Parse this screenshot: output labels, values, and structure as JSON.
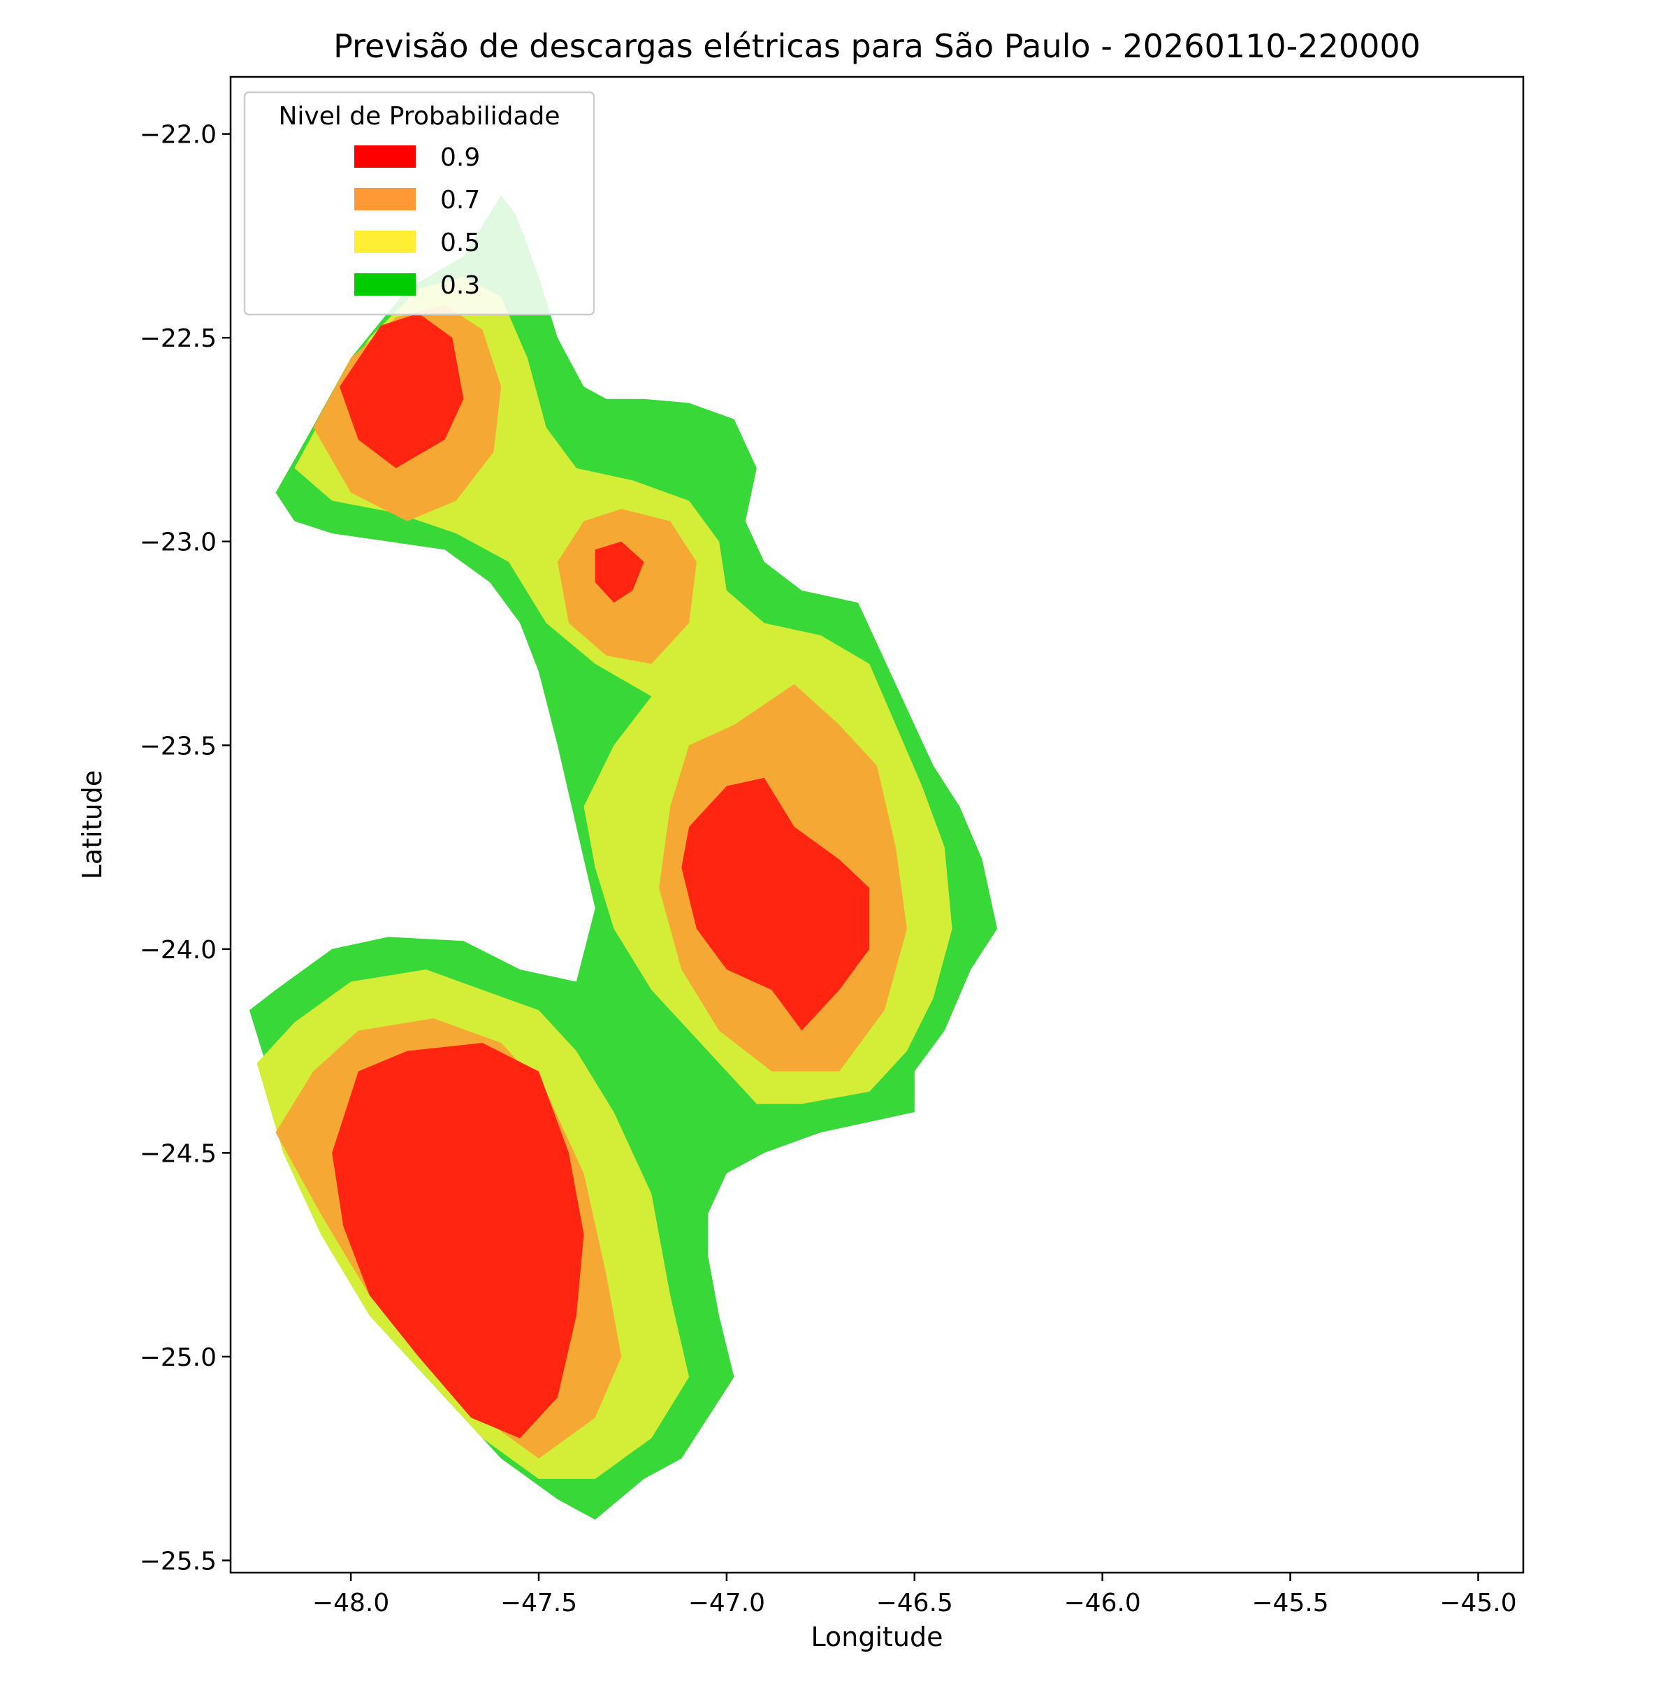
{
  "chart_data": {
    "type": "contour",
    "title": "Previsão de descargas elétricas para São Paulo - 20260110-220000",
    "xlabel": "Longitude",
    "ylabel": "Latitude",
    "xlim": [
      -48.32,
      -44.88
    ],
    "ylim": [
      -25.53,
      -21.86
    ],
    "x_ticks": [
      {
        "value": -48.0,
        "label": "−48.0"
      },
      {
        "value": -47.5,
        "label": "−47.5"
      },
      {
        "value": -47.0,
        "label": "−47.0"
      },
      {
        "value": -46.5,
        "label": "−46.5"
      },
      {
        "value": -46.0,
        "label": "−46.0"
      },
      {
        "value": -45.5,
        "label": "−45.5"
      },
      {
        "value": -45.0,
        "label": "−45.0"
      }
    ],
    "y_ticks": [
      {
        "value": -22.0,
        "label": "−22.0"
      },
      {
        "value": -22.5,
        "label": "−22.5"
      },
      {
        "value": -23.0,
        "label": "−23.0"
      },
      {
        "value": -23.5,
        "label": "−23.5"
      },
      {
        "value": -24.0,
        "label": "−24.0"
      },
      {
        "value": -24.5,
        "label": "−24.5"
      },
      {
        "value": -25.0,
        "label": "−25.0"
      },
      {
        "value": -25.5,
        "label": "−25.5"
      }
    ],
    "grid": false,
    "legend": {
      "title": "Nivel de Probabilidade",
      "placement": "top-left",
      "entries": [
        {
          "label": "0.9",
          "color": "#ff0000"
        },
        {
          "label": "0.7",
          "color": "#ff9933"
        },
        {
          "label": "0.5",
          "color": "#ffee33"
        },
        {
          "label": "0.3",
          "color": "#00cc00"
        }
      ]
    },
    "fill_colors": {
      "level_0.3": "#38d838",
      "level_0.5": "#d4ee38",
      "level_0.7": "#f5a834",
      "level_0.9": "#ff2510"
    },
    "regions": [
      {
        "level": "0.3",
        "polygon": [
          [
            -48.2,
            -22.88
          ],
          [
            -48.12,
            -22.75
          ],
          [
            -48.0,
            -22.55
          ],
          [
            -47.85,
            -22.38
          ],
          [
            -47.7,
            -22.3
          ],
          [
            -47.6,
            -22.15
          ],
          [
            -47.56,
            -22.2
          ],
          [
            -47.5,
            -22.35
          ],
          [
            -47.45,
            -22.5
          ],
          [
            -47.38,
            -22.62
          ],
          [
            -47.32,
            -22.65
          ],
          [
            -47.22,
            -22.65
          ],
          [
            -47.1,
            -22.66
          ],
          [
            -46.98,
            -22.7
          ],
          [
            -46.92,
            -22.82
          ],
          [
            -46.95,
            -22.95
          ],
          [
            -46.9,
            -23.05
          ],
          [
            -46.8,
            -23.12
          ],
          [
            -46.65,
            -23.15
          ],
          [
            -46.6,
            -23.25
          ],
          [
            -46.55,
            -23.35
          ],
          [
            -46.5,
            -23.45
          ],
          [
            -46.45,
            -23.55
          ],
          [
            -46.38,
            -23.65
          ],
          [
            -46.32,
            -23.78
          ],
          [
            -46.28,
            -23.95
          ],
          [
            -46.35,
            -24.05
          ],
          [
            -46.42,
            -24.2
          ],
          [
            -46.5,
            -24.3
          ],
          [
            -46.5,
            -24.4
          ],
          [
            -46.6,
            -24.42
          ],
          [
            -46.75,
            -24.45
          ],
          [
            -46.9,
            -24.5
          ],
          [
            -47.0,
            -24.55
          ],
          [
            -47.05,
            -24.65
          ],
          [
            -47.05,
            -24.75
          ],
          [
            -47.02,
            -24.9
          ],
          [
            -46.98,
            -25.05
          ],
          [
            -47.05,
            -25.15
          ],
          [
            -47.12,
            -25.25
          ],
          [
            -47.22,
            -25.3
          ],
          [
            -47.35,
            -25.4
          ],
          [
            -47.45,
            -25.35
          ],
          [
            -47.6,
            -25.25
          ],
          [
            -47.75,
            -25.1
          ],
          [
            -47.9,
            -24.95
          ],
          [
            -48.05,
            -24.7
          ],
          [
            -48.15,
            -24.5
          ],
          [
            -48.22,
            -24.3
          ],
          [
            -48.27,
            -24.15
          ],
          [
            -48.2,
            -24.1
          ],
          [
            -48.05,
            -24.0
          ],
          [
            -47.9,
            -23.97
          ],
          [
            -47.7,
            -23.98
          ],
          [
            -47.55,
            -24.05
          ],
          [
            -47.4,
            -24.08
          ],
          [
            -47.35,
            -23.9
          ],
          [
            -47.4,
            -23.7
          ],
          [
            -47.45,
            -23.5
          ],
          [
            -47.5,
            -23.32
          ],
          [
            -47.55,
            -23.2
          ],
          [
            -47.63,
            -23.1
          ],
          [
            -47.75,
            -23.02
          ],
          [
            -47.9,
            -23.0
          ],
          [
            -48.05,
            -22.98
          ],
          [
            -48.15,
            -22.95
          ]
        ]
      },
      {
        "level": "0.5",
        "polygon": [
          [
            -48.15,
            -22.82
          ],
          [
            -48.05,
            -22.65
          ],
          [
            -47.95,
            -22.5
          ],
          [
            -47.82,
            -22.38
          ],
          [
            -47.7,
            -22.35
          ],
          [
            -47.6,
            -22.4
          ],
          [
            -47.53,
            -22.55
          ],
          [
            -47.48,
            -22.72
          ],
          [
            -47.4,
            -22.82
          ],
          [
            -47.25,
            -22.85
          ],
          [
            -47.1,
            -22.9
          ],
          [
            -47.02,
            -23.0
          ],
          [
            -47.0,
            -23.12
          ],
          [
            -46.9,
            -23.2
          ],
          [
            -46.75,
            -23.23
          ],
          [
            -46.62,
            -23.3
          ],
          [
            -46.55,
            -23.45
          ],
          [
            -46.48,
            -23.6
          ],
          [
            -46.42,
            -23.75
          ],
          [
            -46.4,
            -23.95
          ],
          [
            -46.45,
            -24.12
          ],
          [
            -46.52,
            -24.25
          ],
          [
            -46.62,
            -24.35
          ],
          [
            -46.8,
            -24.38
          ],
          [
            -46.92,
            -24.38
          ],
          [
            -47.0,
            -24.3
          ],
          [
            -47.1,
            -24.2
          ],
          [
            -47.2,
            -24.1
          ],
          [
            -47.3,
            -23.95
          ],
          [
            -47.35,
            -23.8
          ],
          [
            -47.38,
            -23.65
          ],
          [
            -47.3,
            -23.5
          ],
          [
            -47.2,
            -23.38
          ],
          [
            -47.35,
            -23.3
          ],
          [
            -47.48,
            -23.2
          ],
          [
            -47.58,
            -23.05
          ],
          [
            -47.72,
            -22.98
          ],
          [
            -47.88,
            -22.93
          ],
          [
            -48.05,
            -22.9
          ]
        ]
      },
      {
        "level": "0.5",
        "polygon": [
          [
            -48.25,
            -24.28
          ],
          [
            -48.15,
            -24.18
          ],
          [
            -48.0,
            -24.08
          ],
          [
            -47.8,
            -24.05
          ],
          [
            -47.65,
            -24.1
          ],
          [
            -47.5,
            -24.15
          ],
          [
            -47.4,
            -24.25
          ],
          [
            -47.3,
            -24.4
          ],
          [
            -47.2,
            -24.6
          ],
          [
            -47.15,
            -24.85
          ],
          [
            -47.1,
            -25.05
          ],
          [
            -47.2,
            -25.2
          ],
          [
            -47.35,
            -25.3
          ],
          [
            -47.5,
            -25.3
          ],
          [
            -47.65,
            -25.2
          ],
          [
            -47.8,
            -25.05
          ],
          [
            -47.95,
            -24.9
          ],
          [
            -48.08,
            -24.7
          ],
          [
            -48.18,
            -24.5
          ]
        ]
      },
      {
        "level": "0.7",
        "polygon": [
          [
            -48.1,
            -22.72
          ],
          [
            -48.0,
            -22.55
          ],
          [
            -47.88,
            -22.45
          ],
          [
            -47.75,
            -22.42
          ],
          [
            -47.65,
            -22.48
          ],
          [
            -47.6,
            -22.62
          ],
          [
            -47.62,
            -22.78
          ],
          [
            -47.72,
            -22.9
          ],
          [
            -47.85,
            -22.95
          ],
          [
            -48.0,
            -22.88
          ]
        ]
      },
      {
        "level": "0.7",
        "polygon": [
          [
            -47.45,
            -23.05
          ],
          [
            -47.38,
            -22.95
          ],
          [
            -47.28,
            -22.92
          ],
          [
            -47.15,
            -22.95
          ],
          [
            -47.08,
            -23.05
          ],
          [
            -47.1,
            -23.2
          ],
          [
            -47.2,
            -23.3
          ],
          [
            -47.32,
            -23.28
          ],
          [
            -47.42,
            -23.2
          ]
        ]
      },
      {
        "level": "0.7",
        "polygon": [
          [
            -47.15,
            -23.65
          ],
          [
            -47.1,
            -23.5
          ],
          [
            -46.98,
            -23.45
          ],
          [
            -46.82,
            -23.35
          ],
          [
            -46.7,
            -23.45
          ],
          [
            -46.6,
            -23.55
          ],
          [
            -46.55,
            -23.75
          ],
          [
            -46.52,
            -23.95
          ],
          [
            -46.58,
            -24.15
          ],
          [
            -46.7,
            -24.3
          ],
          [
            -46.88,
            -24.3
          ],
          [
            -47.02,
            -24.2
          ],
          [
            -47.12,
            -24.05
          ],
          [
            -47.18,
            -23.85
          ]
        ]
      },
      {
        "level": "0.7",
        "polygon": [
          [
            -48.2,
            -24.45
          ],
          [
            -48.1,
            -24.3
          ],
          [
            -47.98,
            -24.2
          ],
          [
            -47.78,
            -24.17
          ],
          [
            -47.6,
            -24.23
          ],
          [
            -47.48,
            -24.35
          ],
          [
            -47.38,
            -24.55
          ],
          [
            -47.32,
            -24.8
          ],
          [
            -47.28,
            -25.0
          ],
          [
            -47.35,
            -25.15
          ],
          [
            -47.5,
            -25.25
          ],
          [
            -47.65,
            -25.15
          ],
          [
            -47.8,
            -25.0
          ],
          [
            -47.95,
            -24.85
          ],
          [
            -48.08,
            -24.65
          ]
        ]
      },
      {
        "level": "0.9",
        "polygon": [
          [
            -48.03,
            -22.62
          ],
          [
            -47.92,
            -22.47
          ],
          [
            -47.82,
            -22.44
          ],
          [
            -47.73,
            -22.5
          ],
          [
            -47.7,
            -22.65
          ],
          [
            -47.75,
            -22.75
          ],
          [
            -47.88,
            -22.82
          ],
          [
            -47.98,
            -22.75
          ]
        ]
      },
      {
        "level": "0.9",
        "polygon": [
          [
            -47.35,
            -23.02
          ],
          [
            -47.28,
            -23.0
          ],
          [
            -47.22,
            -23.05
          ],
          [
            -47.25,
            -23.12
          ],
          [
            -47.3,
            -23.15
          ],
          [
            -47.35,
            -23.1
          ]
        ]
      },
      {
        "level": "0.9",
        "polygon": [
          [
            -47.1,
            -23.7
          ],
          [
            -47.0,
            -23.6
          ],
          [
            -46.9,
            -23.58
          ],
          [
            -46.82,
            -23.7
          ],
          [
            -46.7,
            -23.78
          ],
          [
            -46.62,
            -23.85
          ],
          [
            -46.62,
            -24.0
          ],
          [
            -46.7,
            -24.1
          ],
          [
            -46.8,
            -24.2
          ],
          [
            -46.88,
            -24.1
          ],
          [
            -47.0,
            -24.05
          ],
          [
            -47.08,
            -23.95
          ],
          [
            -47.12,
            -23.8
          ]
        ]
      },
      {
        "level": "0.9",
        "polygon": [
          [
            -48.05,
            -24.5
          ],
          [
            -47.98,
            -24.3
          ],
          [
            -47.85,
            -24.25
          ],
          [
            -47.65,
            -24.23
          ],
          [
            -47.5,
            -24.3
          ],
          [
            -47.42,
            -24.5
          ],
          [
            -47.38,
            -24.7
          ],
          [
            -47.4,
            -24.9
          ],
          [
            -47.45,
            -25.1
          ],
          [
            -47.55,
            -25.2
          ],
          [
            -47.68,
            -25.15
          ],
          [
            -47.82,
            -25.0
          ],
          [
            -47.95,
            -24.85
          ],
          [
            -48.02,
            -24.68
          ]
        ]
      }
    ]
  }
}
